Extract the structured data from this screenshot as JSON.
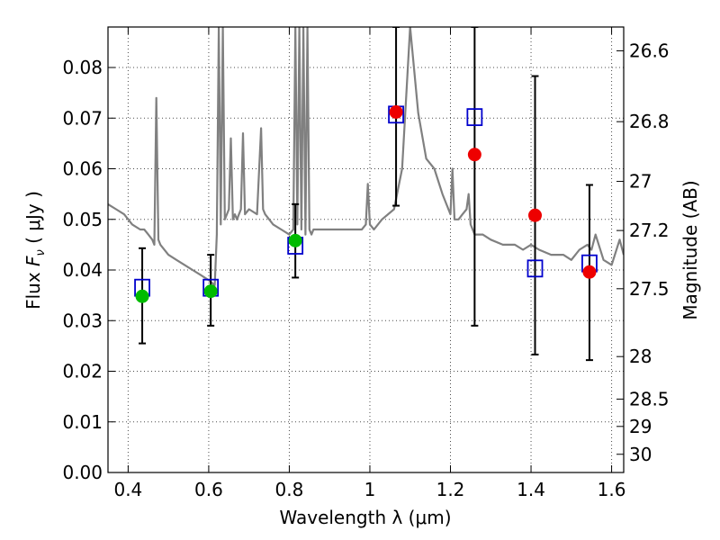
{
  "chart_data": {
    "type": "scatter",
    "xlabel": "Wavelength  λ (μm)",
    "ylabel": "Flux  F_ν  ( μJy )",
    "ylabel_right": "Magnitude (AB)",
    "xlim": [
      0.35,
      1.63
    ],
    "ylim": [
      0.0,
      0.088
    ],
    "grid": true,
    "x_ticks": [
      0.4,
      0.6,
      0.8,
      1.0,
      1.2,
      1.4,
      1.6
    ],
    "x_tick_labels": [
      "0.4",
      "0.6",
      "0.8",
      "1",
      "1.2",
      "1.4",
      "1.6"
    ],
    "y_ticks": [
      0.0,
      0.01,
      0.02,
      0.03,
      0.04,
      0.05,
      0.06,
      0.07,
      0.08
    ],
    "y_tick_labels": [
      "0.00",
      "0.01",
      "0.02",
      "0.03",
      "0.04",
      "0.05",
      "0.06",
      "0.07",
      "0.08"
    ],
    "right_ticks": [
      {
        "flux": 0.0833,
        "label": "26.6"
      },
      {
        "flux": 0.0693,
        "label": "26.8"
      },
      {
        "flux": 0.0575,
        "label": "27"
      },
      {
        "flux": 0.0478,
        "label": "27.2"
      },
      {
        "flux": 0.0363,
        "label": "27.5"
      },
      {
        "flux": 0.0229,
        "label": "28"
      },
      {
        "flux": 0.0145,
        "label": "28.5"
      },
      {
        "flux": 0.0091,
        "label": "29"
      },
      {
        "flux": 0.0036,
        "label": "30"
      }
    ],
    "series": [
      {
        "kind": "spectrum",
        "color": "#808080",
        "x": [
          0.35,
          0.37,
          0.39,
          0.41,
          0.43,
          0.44,
          0.45,
          0.46,
          0.465,
          0.47,
          0.475,
          0.48,
          0.5,
          0.52,
          0.54,
          0.56,
          0.58,
          0.6,
          0.615,
          0.62,
          0.625,
          0.63,
          0.635,
          0.64,
          0.645,
          0.65,
          0.655,
          0.66,
          0.665,
          0.67,
          0.68,
          0.685,
          0.69,
          0.7,
          0.72,
          0.73,
          0.735,
          0.74,
          0.76,
          0.78,
          0.8,
          0.81,
          0.815,
          0.82,
          0.825,
          0.83,
          0.835,
          0.84,
          0.845,
          0.85,
          0.855,
          0.86,
          0.88,
          0.9,
          0.92,
          0.94,
          0.96,
          0.98,
          0.99,
          0.995,
          1.0,
          1.01,
          1.03,
          1.06,
          1.08,
          1.1,
          1.12,
          1.14,
          1.16,
          1.18,
          1.2,
          1.205,
          1.21,
          1.22,
          1.23,
          1.24,
          1.245,
          1.25,
          1.26,
          1.28,
          1.3,
          1.33,
          1.36,
          1.38,
          1.4,
          1.42,
          1.45,
          1.48,
          1.5,
          1.52,
          1.54,
          1.55,
          1.56,
          1.58,
          1.6,
          1.62,
          1.63
        ],
        "y": [
          0.053,
          0.052,
          0.051,
          0.049,
          0.048,
          0.048,
          0.047,
          0.046,
          0.045,
          0.074,
          0.046,
          0.045,
          0.043,
          0.042,
          0.041,
          0.04,
          0.039,
          0.038,
          0.037,
          0.047,
          0.088,
          0.049,
          0.088,
          0.05,
          0.051,
          0.052,
          0.066,
          0.05,
          0.051,
          0.05,
          0.052,
          0.067,
          0.051,
          0.052,
          0.051,
          0.068,
          0.052,
          0.051,
          0.049,
          0.048,
          0.047,
          0.048,
          0.088,
          0.049,
          0.088,
          0.048,
          0.088,
          0.047,
          0.088,
          0.048,
          0.047,
          0.048,
          0.048,
          0.048,
          0.048,
          0.048,
          0.048,
          0.048,
          0.049,
          0.057,
          0.049,
          0.048,
          0.05,
          0.052,
          0.06,
          0.088,
          0.071,
          0.062,
          0.06,
          0.055,
          0.051,
          0.06,
          0.05,
          0.05,
          0.051,
          0.052,
          0.055,
          0.049,
          0.047,
          0.047,
          0.046,
          0.045,
          0.045,
          0.044,
          0.045,
          0.044,
          0.043,
          0.043,
          0.042,
          0.044,
          0.045,
          0.044,
          0.047,
          0.042,
          0.041,
          0.046,
          0.043
        ]
      },
      {
        "kind": "model",
        "marker": "open-square",
        "color": "#0000cc",
        "x": [
          0.435,
          0.605,
          0.815,
          1.065,
          1.26,
          1.41,
          1.545
        ],
        "y": [
          0.0365,
          0.0365,
          0.0448,
          0.0707,
          0.0702,
          0.0403,
          0.0413
        ]
      },
      {
        "kind": "observed",
        "marker": "filled-circle",
        "color": "#00bb00",
        "x": [
          0.435,
          0.605,
          0.815
        ],
        "y": [
          0.0348,
          0.0358,
          0.0458
        ],
        "yerr_low": [
          0.0255,
          0.029,
          0.0385
        ],
        "yerr_high": [
          0.0443,
          0.043,
          0.053
        ]
      },
      {
        "kind": "observed",
        "marker": "filled-circle",
        "color": "#ee0000",
        "x": [
          1.065,
          1.26,
          1.41,
          1.545
        ],
        "y": [
          0.0712,
          0.0628,
          0.0508,
          0.0396
        ],
        "yerr_low": [
          0.0527,
          0.029,
          0.0233,
          0.0222
        ],
        "yerr_high": [
          0.088,
          0.088,
          0.0783,
          0.0568
        ]
      }
    ]
  }
}
